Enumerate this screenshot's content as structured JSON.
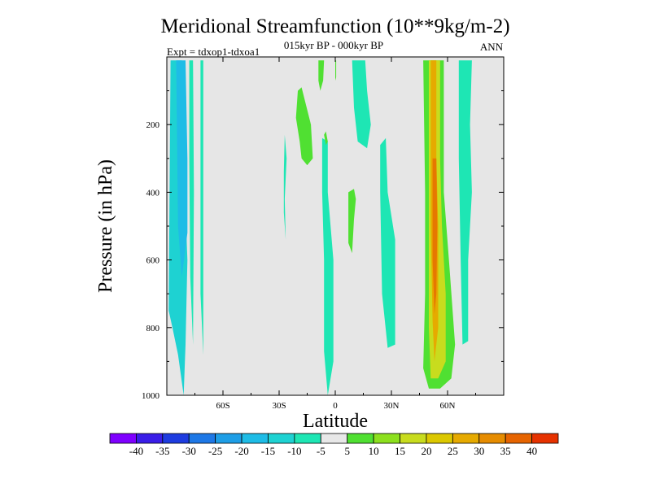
{
  "chart_data": {
    "type": "contour",
    "title": "Meridional Streamfunction (10**9kg/m-2)",
    "subtitle": "015kyr BP - 000kyr BP",
    "left_label": "Expt = tdxop1-tdxoa1",
    "right_label": "ANN",
    "xlabel": "Latitude",
    "ylabel": "Pressure (in hPa)",
    "xlim": [
      -90,
      90
    ],
    "ylim": [
      1000,
      0
    ],
    "x_ticks": [
      {
        "value": -60,
        "label": "60S"
      },
      {
        "value": -30,
        "label": "30S"
      },
      {
        "value": 0,
        "label": "0"
      },
      {
        "value": 30,
        "label": "30N"
      },
      {
        "value": 60,
        "label": "60N"
      }
    ],
    "y_ticks": [
      {
        "value": 200,
        "label": "200"
      },
      {
        "value": 400,
        "label": "400"
      },
      {
        "value": 600,
        "label": "600"
      },
      {
        "value": 800,
        "label": "800"
      },
      {
        "value": 1000,
        "label": "1000"
      }
    ],
    "colorbar": {
      "colors": [
        "#7f00ff",
        "#3a1ee8",
        "#1e3ce0",
        "#1e78e6",
        "#1e9ee6",
        "#1ebce6",
        "#1ed2d2",
        "#1ee6b4",
        "#e8e8e8",
        "#50e032",
        "#8ce01e",
        "#c8dc1e",
        "#dcc800",
        "#e6aa00",
        "#e68c00",
        "#e66400",
        "#e63200"
      ],
      "labels": [
        "-40",
        "-35",
        "-30",
        "-25",
        "-20",
        "-15",
        "-10",
        "-5",
        "5",
        "10",
        "15",
        "20",
        "25",
        "30",
        "35",
        "40"
      ]
    },
    "regions": [
      {
        "level": -10,
        "color": "#1ed2d2",
        "points": [
          [
            -88,
            10
          ],
          [
            -82,
            10
          ],
          [
            -81,
            300
          ],
          [
            -79,
            600
          ],
          [
            -80,
            850
          ],
          [
            -81,
            1000
          ],
          [
            -84,
            880
          ],
          [
            -87,
            800
          ],
          [
            -89,
            750
          ]
        ]
      },
      {
        "level": -15,
        "color": "#1ebce6",
        "points": [
          [
            -85,
            10
          ],
          [
            -80,
            10
          ],
          [
            -79,
            300
          ],
          [
            -79,
            520
          ],
          [
            -82,
            650
          ],
          [
            -84,
            500
          ]
        ]
      },
      {
        "level": -5,
        "color": "#1ee6b4",
        "points": [
          [
            -78,
            10
          ],
          [
            -76,
            10
          ],
          [
            -75.5,
            400
          ],
          [
            -76,
            850
          ],
          [
            -77.5,
            650
          ],
          [
            -78,
            300
          ]
        ]
      },
      {
        "level": -5,
        "color": "#1ee6b4",
        "points": [
          [
            -72,
            10
          ],
          [
            -70.5,
            10
          ],
          [
            -70.5,
            400
          ],
          [
            -70.5,
            880
          ],
          [
            -72,
            700
          ]
        ]
      },
      {
        "level": -5,
        "color": "#1ee6b4",
        "points": [
          [
            -27,
            230
          ],
          [
            -26,
            300
          ],
          [
            -27,
            420
          ],
          [
            -26.5,
            540
          ],
          [
            -27.5,
            460
          ],
          [
            -27.5,
            340
          ]
        ]
      },
      {
        "level": -5,
        "color": "#1ee6b4",
        "points": [
          [
            -7,
            240
          ],
          [
            -4,
            250
          ],
          [
            -4,
            400
          ],
          [
            -1,
            600
          ],
          [
            -1,
            900
          ],
          [
            -4,
            1000
          ],
          [
            -6,
            870
          ],
          [
            -6,
            600
          ],
          [
            -7,
            400
          ]
        ]
      },
      {
        "level": -5,
        "color": "#1ee6b4",
        "points": [
          [
            9,
            10
          ],
          [
            16,
            10
          ],
          [
            17,
            100
          ],
          [
            19,
            200
          ],
          [
            17,
            270
          ],
          [
            12,
            250
          ],
          [
            10,
            150
          ]
        ]
      },
      {
        "level": -5,
        "color": "#1ee6b4",
        "points": [
          [
            24,
            260
          ],
          [
            27,
            240
          ],
          [
            28,
            400
          ],
          [
            32,
            540
          ],
          [
            32,
            850
          ],
          [
            28,
            860
          ],
          [
            25,
            700
          ],
          [
            24,
            400
          ]
        ]
      },
      {
        "level": -5,
        "color": "#1ee6b4",
        "points": [
          [
            66,
            10
          ],
          [
            73,
            10
          ],
          [
            72,
            200
          ],
          [
            73,
            400
          ],
          [
            71,
            600
          ],
          [
            71,
            840
          ],
          [
            68,
            850
          ],
          [
            67,
            600
          ],
          [
            66,
            300
          ]
        ]
      },
      {
        "level": 5,
        "color": "#50e032",
        "points": [
          [
            -9,
            10
          ],
          [
            -6,
            10
          ],
          [
            -6.5,
            70
          ],
          [
            -8,
            100
          ],
          [
            -9,
            70
          ]
        ]
      },
      {
        "level": 5,
        "color": "#50e032",
        "points": [
          [
            -20,
            100
          ],
          [
            -18,
            90
          ],
          [
            -13,
            200
          ],
          [
            -12,
            300
          ],
          [
            -15,
            320
          ],
          [
            -18,
            300
          ],
          [
            -19,
            250
          ],
          [
            -21,
            180
          ]
        ]
      },
      {
        "level": 5,
        "color": "#50e032",
        "points": [
          [
            0,
            10
          ],
          [
            0.5,
            10
          ],
          [
            0.5,
            60
          ],
          [
            0,
            70
          ]
        ]
      },
      {
        "level": 5,
        "color": "#50e032",
        "points": [
          [
            -5,
            220
          ],
          [
            -4,
            250
          ],
          [
            -5,
            260
          ],
          [
            -6,
            230
          ]
        ]
      },
      {
        "level": 5,
        "color": "#50e032",
        "points": [
          [
            7,
            400
          ],
          [
            10,
            390
          ],
          [
            11,
            420
          ],
          [
            10,
            480
          ],
          [
            9,
            580
          ],
          [
            7,
            550
          ],
          [
            7,
            470
          ]
        ]
      },
      {
        "level": 5,
        "color": "#50e032",
        "points": [
          [
            47,
            10
          ],
          [
            58,
            10
          ],
          [
            58,
            400
          ],
          [
            61,
            620
          ],
          [
            64,
            850
          ],
          [
            62,
            950
          ],
          [
            56,
            980
          ],
          [
            50,
            980
          ],
          [
            47,
            920
          ],
          [
            48,
            700
          ],
          [
            48,
            400
          ]
        ]
      },
      {
        "level": 15,
        "color": "#c8dc1e",
        "points": [
          [
            50,
            10
          ],
          [
            56,
            10
          ],
          [
            56,
            300
          ],
          [
            57,
            500
          ],
          [
            59,
            700
          ],
          [
            59,
            900
          ],
          [
            55,
            950
          ],
          [
            51,
            950
          ],
          [
            50,
            800
          ],
          [
            50,
            400
          ]
        ]
      },
      {
        "level": 25,
        "color": "#e6aa00",
        "points": [
          [
            51,
            10
          ],
          [
            54,
            10
          ],
          [
            54,
            300
          ],
          [
            55,
            500
          ],
          [
            55,
            800
          ],
          [
            53,
            900
          ],
          [
            52,
            780
          ],
          [
            51,
            500
          ]
        ]
      },
      {
        "level": 35,
        "color": "#e67800",
        "points": [
          [
            52,
            300
          ],
          [
            54,
            300
          ],
          [
            54.5,
            500
          ],
          [
            54,
            700
          ],
          [
            53,
            760
          ],
          [
            52,
            600
          ]
        ]
      }
    ]
  }
}
